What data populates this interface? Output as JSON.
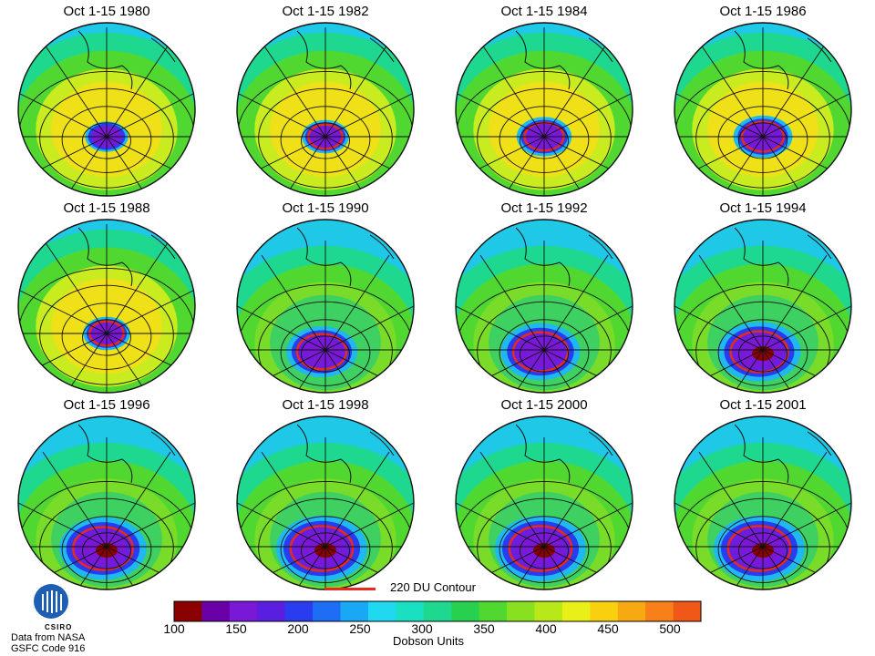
{
  "panels": [
    {
      "title": "Oct 1-15 1980",
      "hole": 0.4,
      "min_du": 240
    },
    {
      "title": "Oct 1-15 1982",
      "hole": 0.45,
      "min_du": 200
    },
    {
      "title": "Oct 1-15 1984",
      "hole": 0.55,
      "min_du": 180
    },
    {
      "title": "Oct 1-15 1986",
      "hole": 0.6,
      "min_du": 170
    },
    {
      "title": "Oct 1-15 1988",
      "hole": 0.45,
      "min_du": 200
    },
    {
      "title": "Oct 1-15 1990",
      "hole": 0.75,
      "min_du": 150
    },
    {
      "title": "Oct 1-15 1992",
      "hole": 0.85,
      "min_du": 140
    },
    {
      "title": "Oct 1-15 1994",
      "hole": 0.9,
      "min_du": 120
    },
    {
      "title": "Oct 1-15 1996",
      "hole": 0.95,
      "min_du": 120
    },
    {
      "title": "Oct 1-15 1998",
      "hole": 1.0,
      "min_du": 110
    },
    {
      "title": "Oct 1-15 2000",
      "hole": 1.0,
      "min_du": 110
    },
    {
      "title": "Oct 1-15 2001",
      "hole": 1.0,
      "min_du": 110
    }
  ],
  "legend": {
    "contour_label": "220 DU Contour",
    "contour_color": "#e8291c",
    "units": "Dobson Units",
    "ticks": [
      "100",
      "150",
      "200",
      "250",
      "300",
      "350",
      "400",
      "450",
      "500"
    ],
    "tick_values": [
      100,
      150,
      200,
      250,
      300,
      350,
      400,
      450,
      500
    ],
    "range": [
      100,
      525
    ],
    "colors": [
      "#8b0000",
      "#6a00a8",
      "#7a18d8",
      "#5a1ee0",
      "#2a3cf0",
      "#1e6ef5",
      "#18a8f5",
      "#20d8f0",
      "#18e0c0",
      "#1ed890",
      "#28d050",
      "#50d830",
      "#88e020",
      "#b8e818",
      "#e8f018",
      "#f8d010",
      "#f8a810",
      "#f88018",
      "#f05818"
    ]
  },
  "branding": {
    "logo_text": "CSIRO",
    "source_line1": "Data from NASA",
    "source_line2": "GSFC Code 916"
  }
}
